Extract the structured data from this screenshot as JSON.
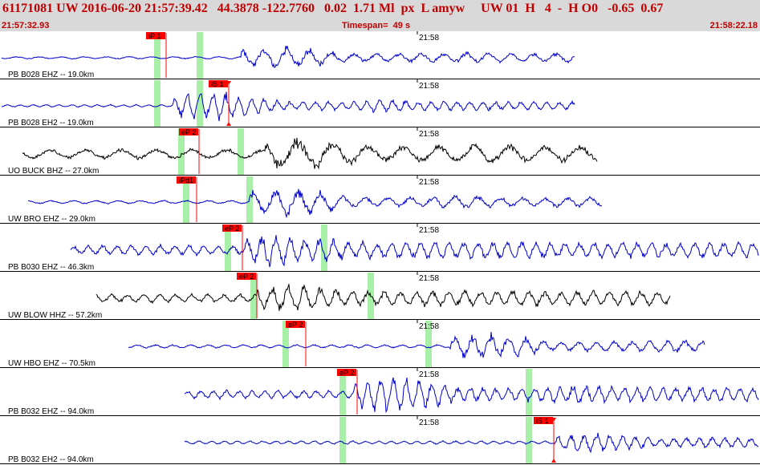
{
  "header": {
    "title": "61171081 UW 2016-06-20 21:57:39.42   44.3878 -122.7760   0.02  1.71 Ml  px  L amyw     UW 01  H   4  -  H O0   -0.65  0.67",
    "start_time": "21:57:32.93",
    "timespan": "Timespan=  49 s",
    "end_time": "21:58:22.18"
  },
  "colors": {
    "trace_blue": "#0000cc",
    "trace_black": "#000000",
    "pick_red": "#ff0000",
    "window_green": "#a8f0a8",
    "header_bg": "#d9d9d9"
  },
  "minute_label": "21:58",
  "channels": [
    {
      "label": "PB B028 EHZ --  19.0km",
      "color": "blue",
      "picks": [
        {
          "text": "iP 1",
          "type": "P"
        }
      ]
    },
    {
      "label": "PB B028 EH2 --  19.0km",
      "color": "blue",
      "picks": [
        {
          "text": "iS 1",
          "type": "S"
        }
      ]
    },
    {
      "label": "UO BUCK BHZ --  27.0km",
      "color": "black",
      "picks": [
        {
          "text": "eP 2",
          "type": "P"
        }
      ]
    },
    {
      "label": "UW BRO  EHZ --  29.0km",
      "color": "blue",
      "picks": [
        {
          "text": "iPd1",
          "type": "P"
        }
      ]
    },
    {
      "label": "PB B030 EHZ --  46.3km",
      "color": "blue",
      "picks": [
        {
          "text": "eP 2",
          "type": "P"
        }
      ]
    },
    {
      "label": "UW BLOW HHZ --  57.2km",
      "color": "black",
      "picks": [
        {
          "text": "eP 2",
          "type": "P"
        }
      ]
    },
    {
      "label": "UW HBO  EHZ --  70.5km",
      "color": "blue",
      "picks": [
        {
          "text": "eP 2",
          "type": "P"
        }
      ]
    },
    {
      "label": "PB B032 EHZ --  94.0km",
      "color": "blue",
      "picks": [
        {
          "text": "eP 2",
          "type": "P"
        }
      ]
    },
    {
      "label": "PB B032 EH2 --  94.0km",
      "color": "blue",
      "picks": [
        {
          "text": "iS 1",
          "type": "S"
        }
      ]
    }
  ]
}
